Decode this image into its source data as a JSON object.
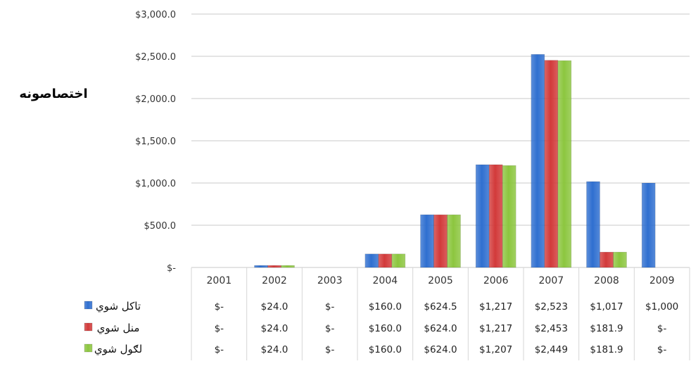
{
  "chart_data": {
    "type": "bar",
    "title": "",
    "xlabel": "",
    "ylabel": "اختصاصونه",
    "ylim": [
      0,
      3000
    ],
    "yticks": [
      0,
      500,
      1000,
      1500,
      2000,
      2500,
      3000
    ],
    "ytick_labels": [
      "$-",
      "$500.0",
      "$1,000.0",
      "$1,500.0",
      "$2,000.0",
      "$2,500.0",
      "$3,000.0"
    ],
    "grid": true,
    "legend": "bottom-left data table",
    "categories": [
      "2001",
      "2002",
      "2003",
      "2004",
      "2005",
      "2006",
      "2007",
      "2008",
      "2009"
    ],
    "series": [
      {
        "name": "تاکل شوي",
        "color": "#2f6fd0",
        "values": [
          0,
          24,
          0,
          160,
          624.5,
          1217,
          2523,
          1017,
          1000
        ],
        "labels": [
          "$-",
          "$24.0",
          "$-",
          "$160.0",
          "$624.5",
          "$1,217",
          "$2,523",
          "$1,017",
          "$1,000"
        ]
      },
      {
        "name": "منل شوي",
        "color": "#d23a3a",
        "values": [
          0,
          24,
          0,
          160,
          624,
          1217,
          2453,
          181.9,
          0
        ],
        "labels": [
          "$-",
          "$24.0",
          "$-",
          "$160.0",
          "$624.0",
          "$1,217",
          "$2,453",
          "$181.9",
          "$-"
        ]
      },
      {
        "name": "لګول شوي",
        "color": "#8cc63f",
        "values": [
          0,
          24,
          0,
          160,
          624,
          1207,
          2449,
          181.9,
          0
        ],
        "labels": [
          "$-",
          "$24.0",
          "$-",
          "$160.0",
          "$624.0",
          "$1,207",
          "$2,449",
          "$181.9",
          "$-"
        ]
      }
    ]
  }
}
